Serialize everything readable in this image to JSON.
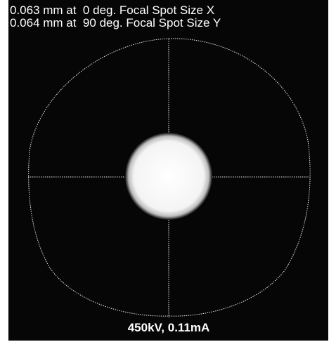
{
  "overlay": {
    "lines": [
      "0.063 mm at  0 deg. Focal Spot Size X",
      "0.064 mm at  90 deg. Focal Spot Size Y"
    ],
    "caption": "450kV, 0.11mA"
  }
}
